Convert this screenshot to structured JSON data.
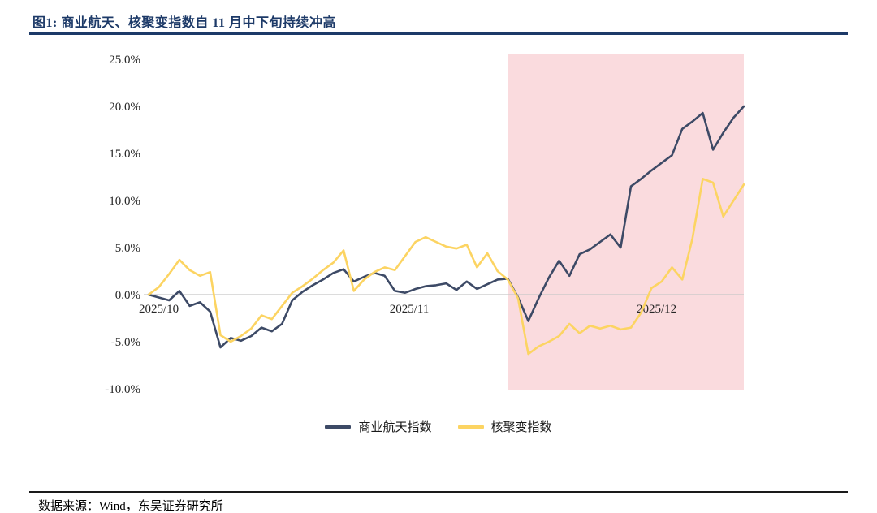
{
  "header": {
    "title": "图1:  商业航天、核聚变指数自 11 月中下旬持续冲高"
  },
  "footer": {
    "source": "数据来源：Wind，东吴证券研究所"
  },
  "chart_data": {
    "type": "line",
    "title": "商业航天、核聚变指数自 11 月中下旬持续冲高",
    "xlabel": "",
    "ylabel": "",
    "ylim": [
      -10,
      25
    ],
    "grid": false,
    "legend_position": "bottom",
    "yticks": [
      {
        "label": "25.0%",
        "value": 25
      },
      {
        "label": "20.0%",
        "value": 20
      },
      {
        "label": "15.0%",
        "value": 15
      },
      {
        "label": "10.0%",
        "value": 10
      },
      {
        "label": "5.0%",
        "value": 5
      },
      {
        "label": "0.0%",
        "value": 0
      },
      {
        "label": "-5.0%",
        "value": -5
      },
      {
        "label": "-10.0%",
        "value": -10
      }
    ],
    "xticks": [
      {
        "label": "2025/10",
        "index": 1.0
      },
      {
        "label": "2025/11",
        "index": 25.4
      },
      {
        "label": "2025/12",
        "index": 49.5
      }
    ],
    "highlight": {
      "start_index": 35,
      "end_index": 58,
      "color": "#fadbde"
    },
    "series": [
      {
        "name": "商业航天指数",
        "color": "#3d4a66",
        "values": [
          0.0,
          -0.3,
          -0.6,
          0.4,
          -1.2,
          -0.8,
          -1.8,
          -5.6,
          -4.6,
          -4.9,
          -4.4,
          -3.5,
          -3.9,
          -3.1,
          -0.6,
          0.3,
          1.0,
          1.6,
          2.3,
          2.7,
          1.4,
          1.9,
          2.3,
          2.0,
          0.4,
          0.2,
          0.6,
          0.9,
          1.0,
          1.2,
          0.5,
          1.4,
          0.6,
          1.1,
          1.6,
          1.7,
          -0.3,
          -2.8,
          -0.4,
          1.8,
          3.6,
          2.0,
          4.3,
          4.8,
          5.6,
          6.4,
          5.0,
          11.5,
          12.3,
          13.2,
          14.0,
          14.8,
          17.6,
          18.4,
          19.3,
          15.4,
          17.2,
          18.8,
          20.0
        ]
      },
      {
        "name": "核聚变指数",
        "color": "#fcd462",
        "values": [
          0.0,
          0.8,
          2.2,
          3.7,
          2.6,
          2.0,
          2.4,
          -4.3,
          -5.0,
          -4.4,
          -3.6,
          -2.2,
          -2.6,
          -1.2,
          0.2,
          0.9,
          1.7,
          2.6,
          3.4,
          4.7,
          0.4,
          1.6,
          2.4,
          2.9,
          2.6,
          4.1,
          5.6,
          6.1,
          5.6,
          5.1,
          4.9,
          5.3,
          2.9,
          4.4,
          2.5,
          1.6,
          -0.4,
          -6.3,
          -5.5,
          -5.0,
          -4.4,
          -3.1,
          -4.1,
          -3.3,
          -3.6,
          -3.3,
          -3.7,
          -3.5,
          -1.9,
          0.7,
          1.4,
          2.9,
          1.6,
          6.0,
          12.3,
          11.9,
          8.3,
          10.0,
          11.7
        ]
      }
    ]
  }
}
